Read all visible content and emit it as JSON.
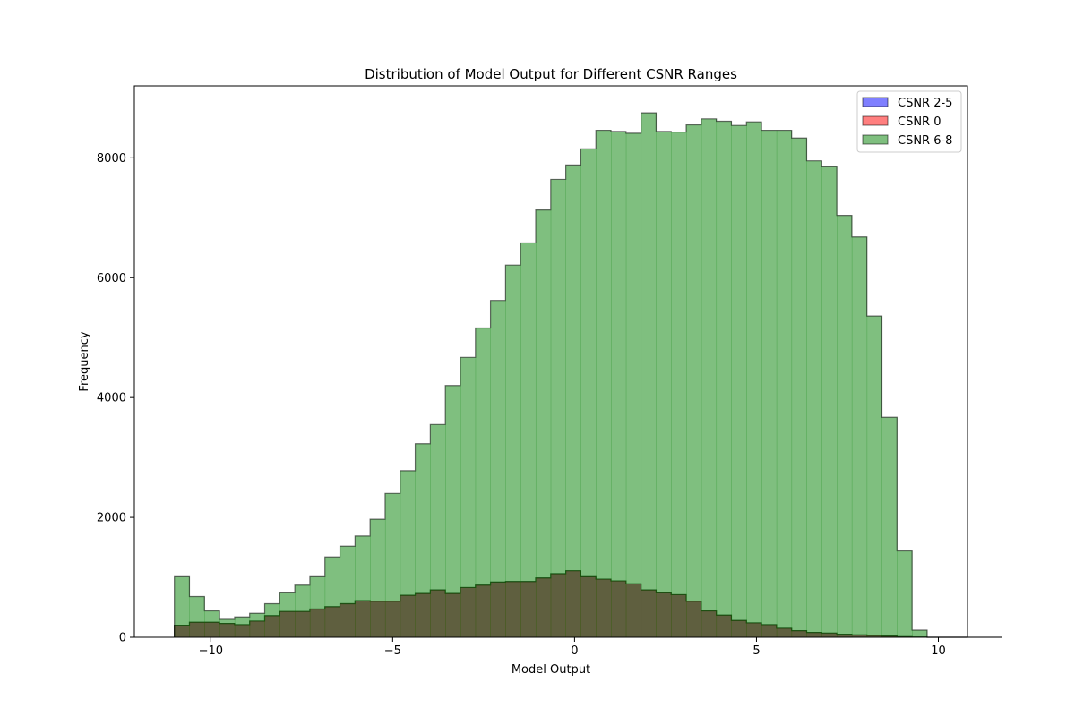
{
  "chart_data": {
    "type": "histogram",
    "title": "Distribution of Model Output for Different CSNR Ranges",
    "xlabel": "Model Output",
    "ylabel": "Frequency",
    "xlim": [
      -12.1,
      10.8
    ],
    "ylim": [
      0,
      9200
    ],
    "xticks": [
      -10,
      -5,
      0,
      5,
      10
    ],
    "xtick_labels": [
      "−10",
      "−5",
      "0",
      "5",
      "10"
    ],
    "yticks": [
      0,
      2000,
      4000,
      6000,
      8000
    ],
    "ytick_labels": [
      "0",
      "2000",
      "4000",
      "6000",
      "8000"
    ],
    "grid": false,
    "legend_position": "upper right",
    "bin_start": -11.0,
    "bin_width": 0.4138,
    "bar_alpha": 0.5,
    "edge_color": "#000000",
    "series": [
      {
        "name": "CSNR 2-5",
        "color": "#0000ff",
        "values": [
          200,
          250,
          250,
          230,
          210,
          270,
          360,
          430,
          430,
          470,
          510,
          560,
          610,
          600,
          600,
          700,
          730,
          790,
          730,
          830,
          870,
          920,
          930,
          930,
          990,
          1060,
          1110,
          1010,
          970,
          940,
          890,
          790,
          740,
          710,
          600,
          440,
          370,
          280,
          240,
          210,
          150,
          110,
          80,
          70,
          50,
          40,
          30,
          20,
          10,
          5,
          0,
          0,
          0,
          0,
          0
        ]
      },
      {
        "name": "CSNR 0",
        "color": "#ff0000",
        "values": [
          200,
          250,
          250,
          230,
          210,
          270,
          360,
          430,
          430,
          470,
          510,
          560,
          610,
          600,
          600,
          700,
          730,
          790,
          730,
          830,
          870,
          920,
          930,
          930,
          990,
          1060,
          1110,
          1010,
          970,
          940,
          890,
          790,
          740,
          710,
          600,
          440,
          370,
          280,
          240,
          210,
          150,
          110,
          80,
          70,
          50,
          40,
          30,
          20,
          10,
          5,
          0,
          0,
          0,
          0,
          0
        ]
      },
      {
        "name": "CSNR 6-8",
        "color": "#008000",
        "values": [
          1010,
          680,
          440,
          300,
          340,
          400,
          560,
          740,
          870,
          1010,
          1340,
          1520,
          1690,
          1970,
          2400,
          2780,
          3230,
          3550,
          4200,
          4670,
          5160,
          5620,
          6210,
          6580,
          7130,
          7640,
          7880,
          8150,
          8460,
          8440,
          8410,
          8750,
          8440,
          8430,
          8550,
          8650,
          8610,
          8540,
          8600,
          8460,
          8460,
          8330,
          7950,
          7850,
          7040,
          6680,
          5360,
          3670,
          1440,
          120
        ]
      }
    ]
  }
}
